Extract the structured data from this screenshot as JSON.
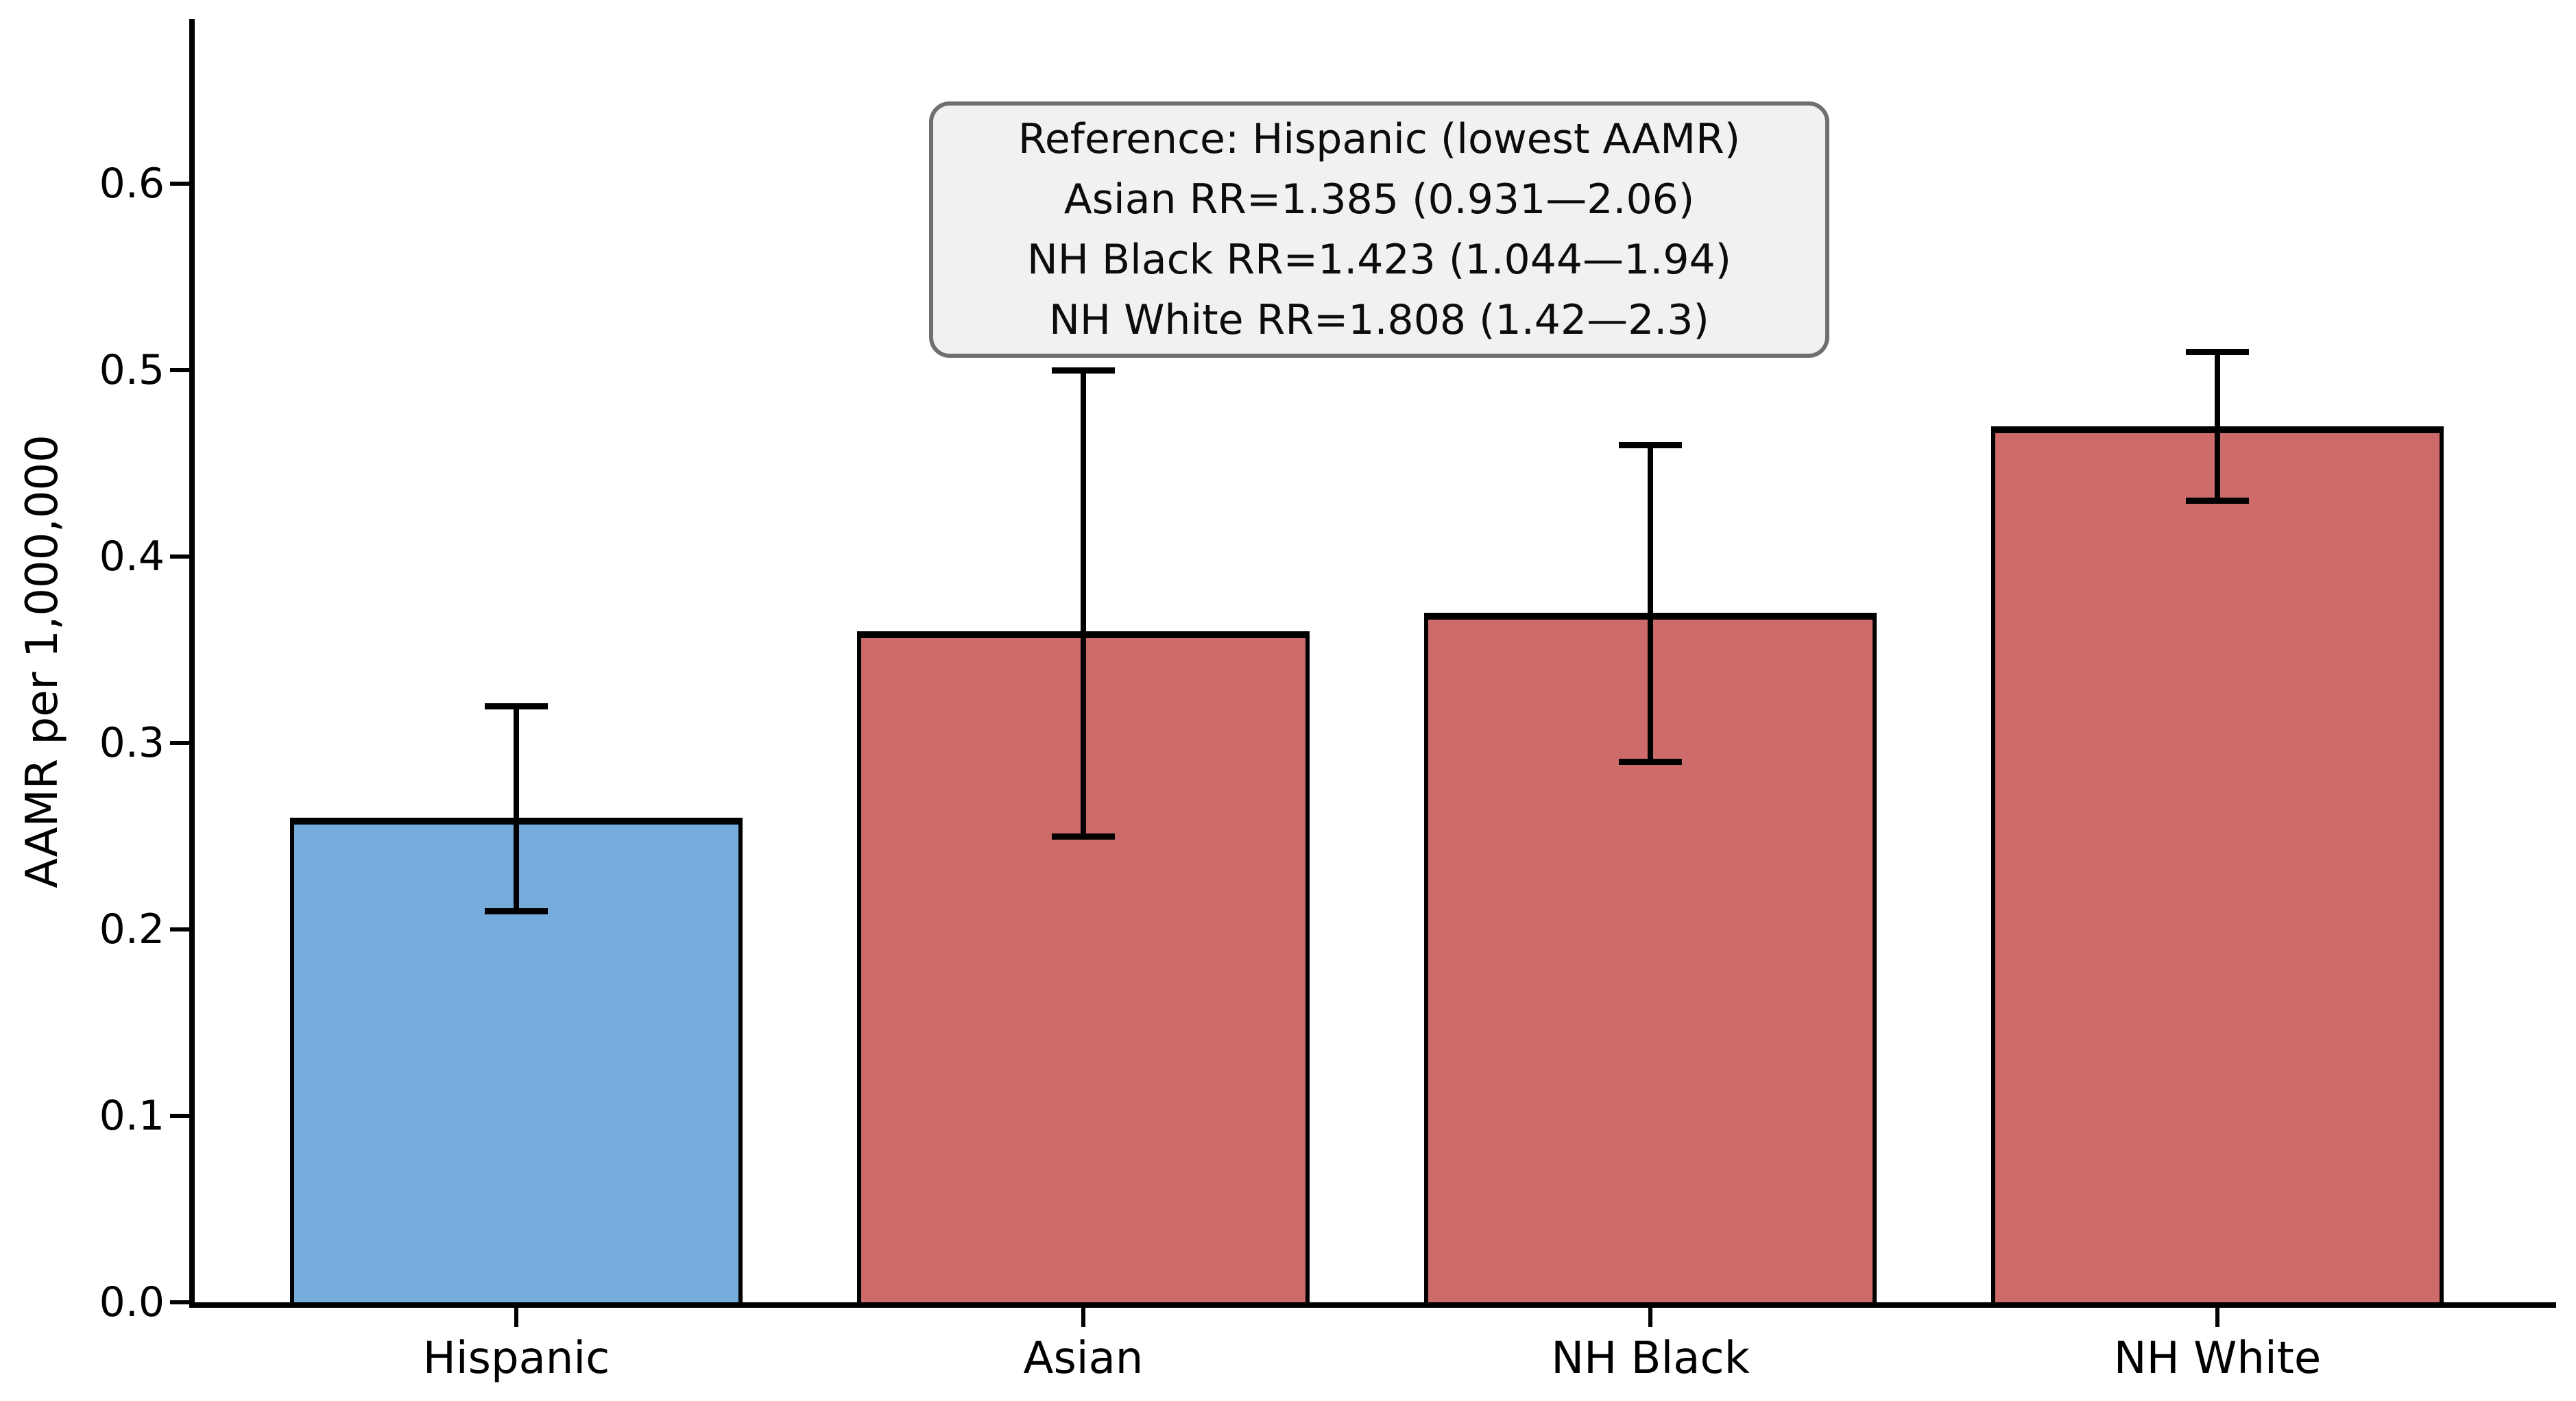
{
  "chart_data": {
    "type": "bar",
    "title": "",
    "xlabel": "",
    "ylabel": "AAMR per 1,000,000",
    "categories": [
      "Hispanic",
      "Asian",
      "NH Black",
      "NH White"
    ],
    "values": [
      0.26,
      0.36,
      0.37,
      0.47
    ],
    "error_bars": {
      "lower": [
        0.21,
        0.25,
        0.29,
        0.43
      ],
      "upper": [
        0.32,
        0.5,
        0.46,
        0.51
      ]
    },
    "bar_colors": [
      "#75acdc",
      "#cd6a6a",
      "#cd6a6a",
      "#cd6a6a"
    ],
    "reference_bar_color": "#75acdc",
    "comparison_bar_color": "#cd6a6a",
    "bar_edge_color": "#000000",
    "error_bar_color": "#000000",
    "ylim": [
      0,
      0.69
    ],
    "ytick_values": [
      0.0,
      0.1,
      0.2,
      0.3,
      0.4,
      0.5,
      0.6
    ],
    "yticks": [
      "0.0",
      "0.1",
      "0.2",
      "0.3",
      "0.4",
      "0.5",
      "0.6"
    ],
    "grid": false,
    "legend": null,
    "annotation": {
      "lines": [
        "Reference: Hispanic (lowest AAMR)",
        "Asian RR=1.385 (0.931—2.06)",
        "NH Black RR=1.423 (1.044—1.94)",
        "NH White RR=1.808 (1.42—2.3)"
      ],
      "background": "#f1f1f1",
      "border_color": "#6f6f6f"
    }
  }
}
